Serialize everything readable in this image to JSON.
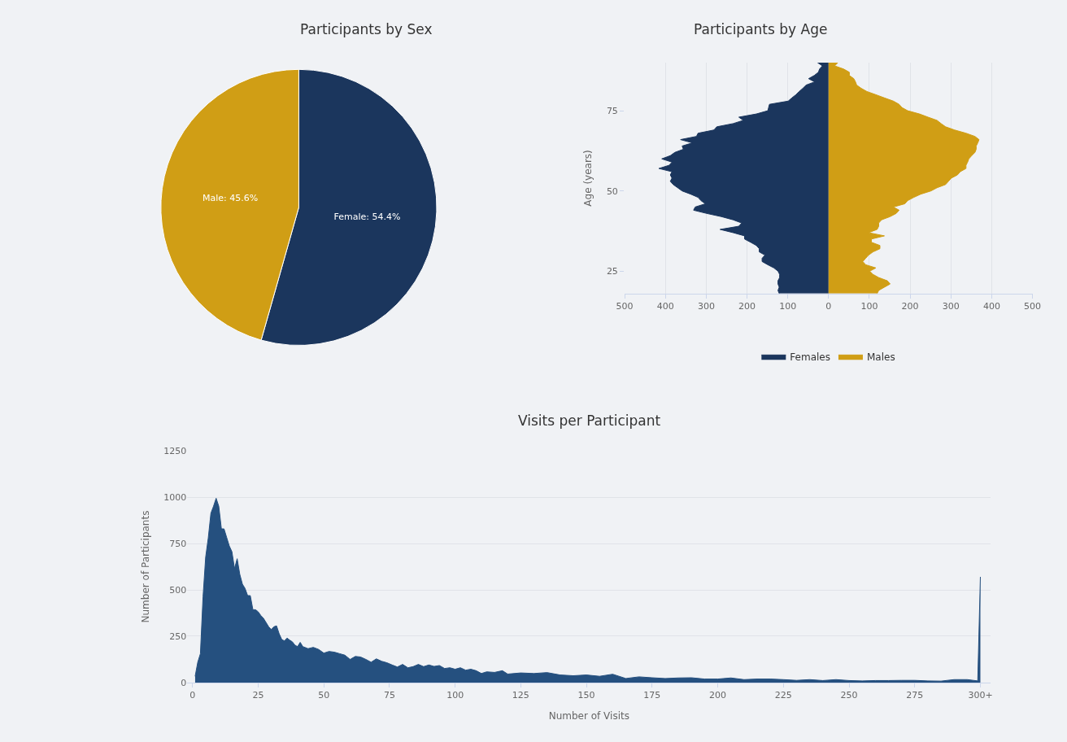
{
  "chart_data": [
    {
      "type": "pie",
      "title": "Participants by Sex",
      "categories": [
        "Female: 54.4%",
        "Male: 45.6%"
      ],
      "values": [
        54.4,
        45.6
      ],
      "colors": [
        "#1b365d",
        "#d09e15"
      ]
    },
    {
      "type": "area",
      "title": "Participants by Age",
      "orientation": "horizontal",
      "ylabel": "Age (years)",
      "x": [
        18,
        19,
        20,
        21,
        22,
        23,
        24,
        25,
        26,
        27,
        28,
        29,
        30,
        31,
        32,
        33,
        34,
        35,
        36,
        37,
        38,
        39,
        40,
        41,
        42,
        43,
        44,
        45,
        46,
        47,
        48,
        49,
        50,
        51,
        52,
        53,
        54,
        55,
        56,
        57,
        58,
        59,
        60,
        61,
        62,
        63,
        64,
        65,
        66,
        67,
        68,
        69,
        70,
        71,
        72,
        73,
        74,
        75,
        76,
        77,
        78,
        79,
        80,
        81,
        82,
        83,
        84,
        85,
        86,
        87,
        88,
        89,
        90
      ],
      "series": [
        {
          "name": "Females",
          "color": "#1b365d",
          "values": [
            -121,
            -124,
            -121,
            -124,
            -124,
            -120,
            -120,
            -124,
            -134,
            -149,
            -163,
            -163,
            -156,
            -170,
            -170,
            -177,
            -191,
            -206,
            -206,
            -234,
            -266,
            -220,
            -213,
            -234,
            -263,
            -299,
            -331,
            -327,
            -302,
            -313,
            -320,
            -338,
            -359,
            -370,
            -381,
            -388,
            -384,
            -388,
            -384,
            -416,
            -391,
            -384,
            -409,
            -388,
            -377,
            -356,
            -359,
            -334,
            -363,
            -324,
            -320,
            -281,
            -274,
            -234,
            -209,
            -220,
            -177,
            -149,
            -147,
            -145,
            -99,
            -90,
            -80,
            -72,
            -63,
            -55,
            -34,
            -49,
            -35,
            -25,
            -22,
            -15,
            -27
          ]
        },
        {
          "name": "Males",
          "color": "#d09e15",
          "values": [
            119,
            123,
            137,
            151,
            144,
            123,
            109,
            101,
            116,
            91,
            84,
            91,
            98,
            109,
            126,
            126,
            105,
            105,
            137,
            98,
            119,
            123,
            123,
            130,
            151,
            166,
            173,
            159,
            187,
            194,
            209,
            226,
            251,
            266,
            287,
            294,
            301,
            316,
            323,
            337,
            337,
            341,
            344,
            351,
            359,
            362,
            362,
            366,
            369,
            359,
            337,
            309,
            287,
            276,
            266,
            244,
            223,
            194,
            180,
            173,
            159,
            137,
            116,
            94,
            80,
            69,
            66,
            62,
            51,
            51,
            37,
            15,
            23
          ]
        }
      ],
      "xlim": [
        -500,
        500
      ],
      "xticks": [
        {
          "value": -500,
          "label": "500"
        },
        {
          "value": -400,
          "label": "400"
        },
        {
          "value": -300,
          "label": "300"
        },
        {
          "value": -200,
          "label": "200"
        },
        {
          "value": -100,
          "label": "100"
        },
        0,
        100,
        200,
        300,
        400,
        500
      ],
      "ylim": [
        18,
        90
      ],
      "yticks": [
        25,
        50,
        75
      ],
      "grid": "x",
      "legend": "bottom"
    },
    {
      "type": "area",
      "title": "Visits per Participant",
      "xlabel": "Number of Visits",
      "ylabel": "Number of Participants",
      "color": "#25507f",
      "x": [
        1,
        2,
        3,
        4,
        5,
        6,
        7,
        8,
        9,
        10,
        11,
        12,
        13,
        14,
        15,
        16,
        17,
        18,
        19,
        20,
        21,
        22,
        23,
        24,
        25,
        26,
        27,
        28,
        29,
        30,
        31,
        32,
        33,
        34,
        35,
        36,
        37,
        38,
        39,
        40,
        41,
        42,
        44,
        46,
        48,
        50,
        52,
        54,
        56,
        58,
        60,
        62,
        64,
        66,
        68,
        70,
        72,
        74,
        76,
        78,
        80,
        82,
        84,
        86,
        88,
        90,
        92,
        94,
        96,
        98,
        100,
        102,
        104,
        106,
        108,
        110,
        112,
        115,
        118,
        120,
        125,
        130,
        135,
        140,
        145,
        150,
        155,
        160,
        165,
        170,
        175,
        180,
        185,
        190,
        195,
        200,
        205,
        210,
        215,
        220,
        225,
        230,
        235,
        240,
        245,
        250,
        255,
        260,
        265,
        270,
        275,
        280,
        285,
        290,
        295,
        299,
        300
      ],
      "values": [
        34,
        110,
        156,
        462,
        676,
        780,
        913,
        951,
        994,
        951,
        829,
        829,
        783,
        737,
        706,
        615,
        668,
        584,
        531,
        508,
        469,
        469,
        393,
        393,
        382,
        362,
        347,
        324,
        301,
        286,
        301,
        306,
        263,
        232,
        225,
        240,
        229,
        220,
        202,
        194,
        217,
        194,
        183,
        190,
        179,
        159,
        168,
        164,
        156,
        148,
        125,
        141,
        138,
        125,
        110,
        128,
        115,
        107,
        95,
        84,
        98,
        80,
        86,
        98,
        86,
        95,
        87,
        92,
        76,
        80,
        72,
        80,
        67,
        72,
        64,
        49,
        58,
        55,
        64,
        46,
        52,
        49,
        54,
        41,
        37,
        41,
        34,
        45,
        22,
        31,
        26,
        22,
        25,
        26,
        19,
        19,
        25,
        16,
        19,
        19,
        16,
        12,
        16,
        11,
        16,
        11,
        9,
        11,
        11,
        12,
        12,
        9,
        8,
        16,
        16,
        9,
        570
      ],
      "xlim": [
        -2,
        304
      ],
      "xticks": [
        0,
        25,
        50,
        75,
        100,
        125,
        150,
        175,
        200,
        225,
        250,
        275,
        {
          "value": 300,
          "label": "300+"
        }
      ],
      "ylim": [
        0,
        1250
      ],
      "yticks": [
        0,
        250,
        500,
        750,
        1000,
        1250
      ],
      "grid": "y"
    }
  ]
}
